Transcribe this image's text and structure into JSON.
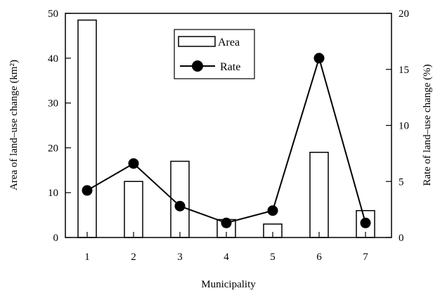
{
  "chart_data": {
    "type": "bar",
    "categories": [
      "1",
      "2",
      "3",
      "4",
      "5",
      "6",
      "7"
    ],
    "xlabel": "Municipality",
    "ylabel_left": "Area of land–use change (km²)",
    "ylabel_right": "Rate of land–use change (%)",
    "ylim_left": [
      0,
      50
    ],
    "ylim_right": [
      0,
      20
    ],
    "yticks_left": [
      "0",
      "10",
      "20",
      "30",
      "40",
      "50"
    ],
    "yticks_right": [
      "0",
      "5",
      "10",
      "15",
      "20"
    ],
    "grid": false,
    "legend_position": "top-center",
    "series": [
      {
        "name": "Area",
        "type": "bar",
        "axis": "left",
        "values": [
          48.5,
          12.5,
          17,
          4,
          3,
          19,
          6
        ]
      },
      {
        "name": "Rate",
        "type": "line",
        "axis": "right",
        "values": [
          4.2,
          6.6,
          2.8,
          1.3,
          2.4,
          16,
          1.3
        ]
      }
    ]
  },
  "colors": {
    "bar_fill": "#ffffff",
    "stroke": "#000000",
    "marker": "#000000"
  }
}
